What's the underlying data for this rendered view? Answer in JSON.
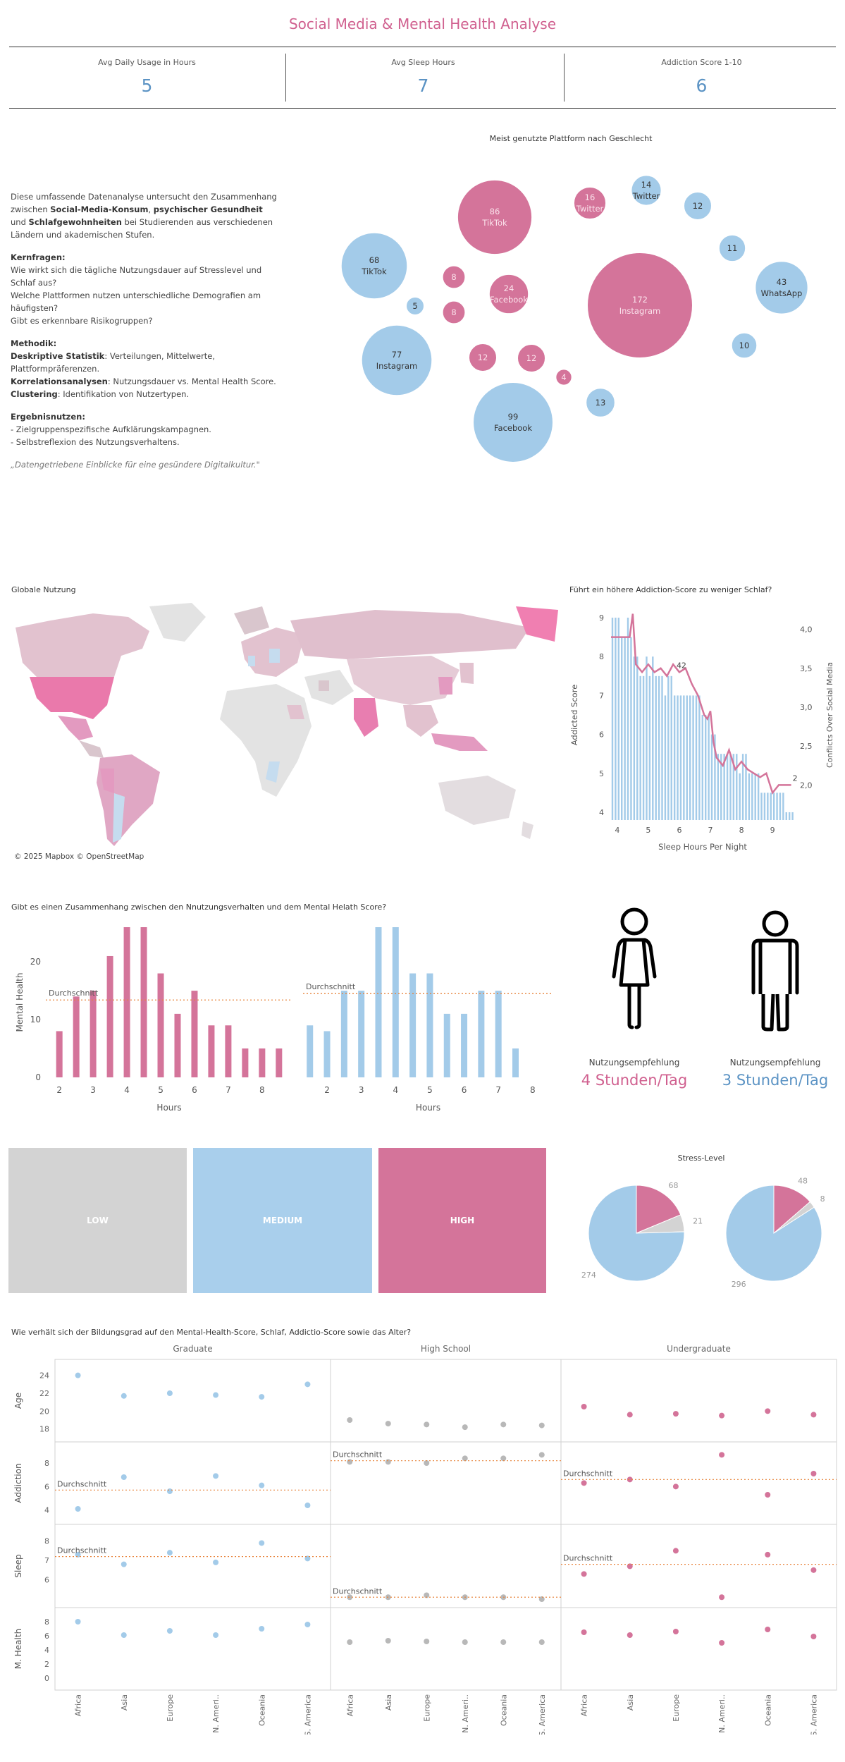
{
  "header": {
    "title": "Social Media & Mental Health Analyse"
  },
  "kpis": [
    {
      "label": "Avg Daily Usage in Hours",
      "value": "5"
    },
    {
      "label": "Avg Sleep Hours",
      "value": "7"
    },
    {
      "label": "Addiction Score 1-10",
      "value": "6"
    }
  ],
  "intro": {
    "p1_a": "Diese umfassende Datenanalyse untersucht den Zusammenhang zwischen ",
    "p1_b1": "Social-Media-Konsum",
    "p1_c": ", ",
    "p1_b2": "psychischer Gesundheit",
    "p1_d": " und ",
    "p1_b3": "Schlafgewohnheiten",
    "p1_e": " bei Studierenden aus verschiedenen Ländern und akademischen Stufen.",
    "q_head": "Kernfragen:",
    "q1": "Wie wirkt sich die tägliche Nutzungsdauer auf Stresslevel und Schlaf aus?",
    "q2": "Welche Plattformen nutzen unterschiedliche Demografien am häufigsten?",
    "q3": "Gibt es erkennbare Risikogruppen?",
    "m_head": "Methodik:",
    "m1_b": "Deskriptive Statistik",
    "m1": ": Verteilungen, Mittelwerte, Plattformpräferenzen.",
    "m2_b": "Korrelationsanalysen",
    "m2": ": Nutzungsdauer vs. Mental Health Score.",
    "m3_b": "Clustering",
    "m3": ": Identifikation von Nutzertypen.",
    "r_head": "Ergebnisnutzen:",
    "r1": "- Zielgruppenspezifische Aufklärungskampagnen.",
    "r2": "- Selbstreflexion des Nutzungsverhaltens.",
    "quote": "„Datengetriebene Einblicke für eine gesündere Digitalkultur.\""
  },
  "colors": {
    "pink": "#d4749a",
    "blue": "#a3cbe9",
    "grey": "#d3d3d3",
    "accent_pink": "#d0608f",
    "accent_blue": "#5b93c4",
    "orange": "#e8833a"
  },
  "map": {
    "title": "Globale Nutzung",
    "credit": "© 2025 Mapbox © OpenStreetMap"
  },
  "chart_data": [
    {
      "type": "bubble",
      "title": "Meist genutzte Plattform nach Geschlecht",
      "bubbles": [
        {
          "value": 86,
          "label": "TikTok",
          "group": "female"
        },
        {
          "value": 16,
          "label": "Twitter",
          "group": "female"
        },
        {
          "value": 14,
          "label": "Twitter",
          "group": "male"
        },
        {
          "value": 12,
          "label": "",
          "group": "male"
        },
        {
          "value": 68,
          "label": "TikTok",
          "group": "male"
        },
        {
          "value": 11,
          "label": "",
          "group": "male"
        },
        {
          "value": 8,
          "label": "",
          "group": "female"
        },
        {
          "value": 24,
          "label": "Facebook",
          "group": "female"
        },
        {
          "value": 172,
          "label": "Instagram",
          "group": "female"
        },
        {
          "value": 43,
          "label": "WhatsApp",
          "group": "male"
        },
        {
          "value": 5,
          "label": "",
          "group": "male"
        },
        {
          "value": 8,
          "label": "",
          "group": "female"
        },
        {
          "value": 10,
          "label": "",
          "group": "male"
        },
        {
          "value": 77,
          "label": "Instagram",
          "group": "male"
        },
        {
          "value": 12,
          "label": "",
          "group": "female"
        },
        {
          "value": 12,
          "label": "",
          "group": "female"
        },
        {
          "value": 4,
          "label": "",
          "group": "female"
        },
        {
          "value": 13,
          "label": "",
          "group": "male"
        },
        {
          "value": 99,
          "label": "Facebook",
          "group": "male"
        }
      ]
    },
    {
      "type": "bar+line",
      "title": "Führt ein höhere Addiction-Score zu weniger Schlaf?",
      "xlabel": "Sleep Hours Per Night",
      "ylabel": "Addicted Score",
      "y2label": "Conflicts Over Social Media",
      "xlim": [
        3.8,
        9.7
      ],
      "ylim": [
        3.8,
        9.2
      ],
      "y2lim": [
        1.55,
        4.25
      ],
      "xticks": [
        4,
        5,
        6,
        7,
        8,
        9
      ],
      "yticks": [
        4,
        5,
        6,
        7,
        8,
        9
      ],
      "y2ticks": [
        "2,0",
        "2,5",
        "3,0",
        "3,5",
        "4,0"
      ],
      "y2tick_values": [
        2.0,
        2.5,
        3.0,
        3.5,
        4.0
      ],
      "x": [
        3.8,
        3.9,
        4.0,
        4.1,
        4.2,
        4.3,
        4.4,
        4.5,
        4.6,
        4.7,
        4.8,
        4.9,
        5.0,
        5.1,
        5.2,
        5.3,
        5.4,
        5.5,
        5.6,
        5.7,
        5.8,
        5.9,
        6.0,
        6.1,
        6.2,
        6.3,
        6.4,
        6.5,
        6.6,
        6.7,
        6.8,
        6.9,
        7.0,
        7.1,
        7.2,
        7.3,
        7.4,
        7.5,
        7.6,
        7.7,
        7.8,
        7.9,
        8.0,
        8.1,
        8.2,
        8.3,
        8.4,
        8.5,
        8.6,
        8.7,
        8.8,
        8.9,
        9.0,
        9.1,
        9.2,
        9.3,
        9.4,
        9.5,
        9.6
      ],
      "bars": [
        9,
        9,
        9,
        8.5,
        8.5,
        9,
        8.5,
        8,
        8,
        7.5,
        7.5,
        8,
        7.5,
        8,
        7.5,
        7.5,
        7.5,
        7,
        7.5,
        7.5,
        7,
        7,
        7,
        7,
        7,
        7,
        7,
        7,
        7,
        6.5,
        6.5,
        6.5,
        6,
        6,
        5.5,
        5.5,
        5.5,
        5.5,
        5.5,
        5.5,
        5.5,
        5,
        5.5,
        5.5,
        5,
        5,
        5,
        5,
        4.5,
        4.5,
        4.5,
        4.5,
        4.5,
        4.5,
        4.5,
        4.5,
        4,
        4,
        4
      ],
      "line_x": [
        3.8,
        4.0,
        4.2,
        4.4,
        4.5,
        4.6,
        4.8,
        5.0,
        5.2,
        5.4,
        5.6,
        5.8,
        6.0,
        6.2,
        6.4,
        6.6,
        6.8,
        6.9,
        7.0,
        7.1,
        7.2,
        7.4,
        7.6,
        7.8,
        8.0,
        8.2,
        8.4,
        8.6,
        8.8,
        9.0,
        9.2,
        9.4,
        9.6
      ],
      "line_y": [
        3.9,
        3.9,
        3.9,
        3.9,
        4.2,
        3.55,
        3.45,
        3.55,
        3.45,
        3.5,
        3.4,
        3.55,
        3.45,
        3.5,
        3.3,
        3.15,
        2.9,
        2.85,
        2.95,
        2.55,
        2.35,
        2.25,
        2.45,
        2.2,
        2.3,
        2.2,
        2.15,
        2.1,
        2.15,
        1.9,
        2.0,
        2.0,
        2.0
      ],
      "annotations": [
        {
          "x": 6.0,
          "text": "42"
        },
        {
          "x": 9.6,
          "text": "2"
        }
      ]
    },
    {
      "type": "bar",
      "title": "Gibt es einen Zusammenhang zwischen den Nnutzungsverhalten und dem Mental Helath Score?",
      "ylabel": "Mental Health",
      "xlabel": "Hours",
      "ylim": [
        0,
        26
      ],
      "yticks": [
        0,
        10,
        20
      ],
      "avg_label": "Durchschnitt",
      "panels": [
        {
          "color": "pink",
          "x": [
            2,
            2.5,
            3,
            3.5,
            4,
            4.5,
            5,
            5.5,
            6,
            6.5,
            7,
            7.5,
            8,
            8.5
          ],
          "values": [
            8,
            14,
            15,
            21,
            26,
            26,
            18,
            11,
            15,
            9,
            9,
            5,
            5,
            5
          ],
          "avg": 13.4,
          "xticks": [
            2,
            3,
            4,
            5,
            6,
            7,
            8
          ],
          "xlim": [
            1.6,
            8.9
          ]
        },
        {
          "color": "blue",
          "x": [
            1.5,
            2,
            2.5,
            3,
            3.5,
            4,
            4.5,
            5,
            5.5,
            6,
            6.5,
            7,
            7.5
          ],
          "values": [
            9,
            8,
            15,
            15,
            26,
            26,
            18,
            18,
            11,
            11,
            15,
            15,
            5
          ],
          "avg": 14.5,
          "xticks": [
            2,
            3,
            4,
            5,
            6,
            7,
            8
          ],
          "xlim": [
            1.3,
            8.6
          ]
        }
      ]
    },
    {
      "type": "pie",
      "title": "Stress-Level",
      "pies": [
        {
          "slices": [
            {
              "category": "HIGH",
              "value": 68
            },
            {
              "category": "LOW",
              "value": 21
            },
            {
              "category": "MEDIUM",
              "value": 274
            }
          ]
        },
        {
          "slices": [
            {
              "category": "HIGH",
              "value": 48
            },
            {
              "category": "LOW",
              "value": 8
            },
            {
              "category": "MEDIUM",
              "value": 296
            }
          ]
        }
      ]
    },
    {
      "type": "scatter",
      "title": "Wie verhält sich der Bildungsgrad auf den Mental-Health-Score, Schlaf, Addictio-Score sowie das Alter?",
      "columns": [
        {
          "name": "Graduate",
          "color": "blue"
        },
        {
          "name": "High School",
          "color": "grey"
        },
        {
          "name": "Undergraduate",
          "color": "pink"
        }
      ],
      "categories": [
        "Africa",
        "Asia",
        "Europe",
        "N. Ameri..",
        "Oceania",
        "S. America"
      ],
      "avg_label": "Durchschnitt",
      "rows": [
        {
          "name": "Age",
          "ylim": [
            17.5,
            25
          ],
          "yticks": [
            18,
            20,
            22,
            24
          ],
          "values": [
            [
              24,
              21.7,
              22,
              21.8,
              21.6,
              23
            ],
            [
              19,
              18.6,
              18.5,
              18.2,
              18.5,
              18.4
            ],
            [
              20.5,
              19.6,
              19.7,
              19.5,
              20,
              19.6
            ]
          ],
          "avg": [
            null,
            null,
            null
          ]
        },
        {
          "name": "Addiction",
          "ylim": [
            3.5,
            9.2
          ],
          "yticks": [
            4,
            6,
            8
          ],
          "values": [
            [
              4.1,
              6.8,
              5.6,
              6.9,
              6.1,
              4.4
            ],
            [
              8.1,
              8.1,
              8.0,
              8.4,
              8.4,
              8.7
            ],
            [
              6.3,
              6.6,
              6.0,
              8.7,
              5.3,
              7.1
            ]
          ],
          "avg": [
            5.7,
            8.2,
            6.6
          ]
        },
        {
          "name": "Sleep",
          "ylim": [
            5,
            8.5
          ],
          "yticks": [
            6,
            7,
            8
          ],
          "values": [
            [
              7.3,
              6.8,
              7.4,
              6.9,
              7.9,
              7.1
            ],
            [
              5.1,
              5.1,
              5.2,
              5.1,
              5.1,
              5.0
            ],
            [
              6.3,
              6.7,
              7.5,
              5.1,
              7.3,
              6.5
            ]
          ],
          "avg": [
            7.2,
            5.1,
            6.8
          ]
        },
        {
          "name": "M. Health",
          "ylim": [
            -0.5,
            9
          ],
          "yticks": [
            0,
            2,
            4,
            6,
            8
          ],
          "values": [
            [
              8,
              6.1,
              6.7,
              6.1,
              7,
              7.6
            ],
            [
              5.1,
              5.3,
              5.2,
              5.1,
              5.1,
              5.1
            ],
            [
              6.5,
              6.1,
              6.6,
              5,
              6.9,
              5.9
            ]
          ],
          "avg": [
            null,
            null,
            null
          ]
        }
      ]
    }
  ],
  "recommendations": [
    {
      "label": "Nutzungsempfehlung",
      "value": "4 Stunden/Tag",
      "color": "#d0608f"
    },
    {
      "label": "Nutzungsempfehlung",
      "value": "3 Stunden/Tag",
      "color": "#5b93c4"
    }
  ],
  "stress_tiles": [
    {
      "label": "LOW",
      "color": "#d3d3d3"
    },
    {
      "label": "MEDIUM",
      "color": "#a9cfec"
    },
    {
      "label": "HIGH",
      "color": "#d4749a"
    }
  ]
}
